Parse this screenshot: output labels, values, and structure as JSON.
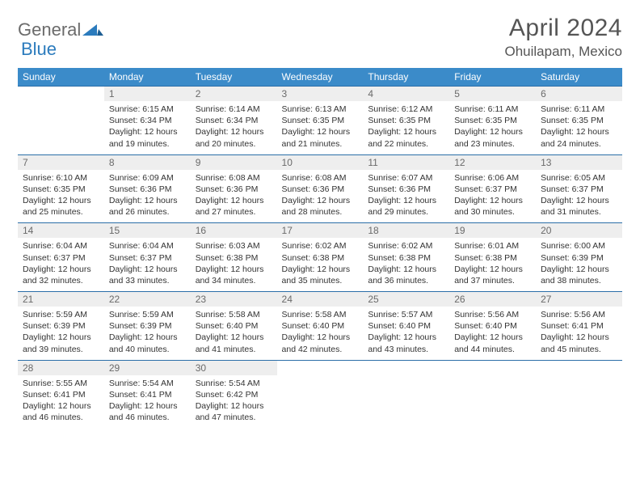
{
  "brand": {
    "word1": "General",
    "word2": "Blue"
  },
  "title": "April 2024",
  "location": "Ohuilapam, Mexico",
  "colors": {
    "header_bg": "#3b8bc9",
    "header_text": "#ffffff",
    "rule": "#2b6ea8",
    "daynum_bg": "#eeeeee",
    "text": "#333333",
    "brand_gray": "#6b6b6b",
    "brand_blue": "#2b7bbd"
  },
  "typography": {
    "title_fontsize": 30,
    "location_fontsize": 17,
    "dayhead_fontsize": 12,
    "daynum_fontsize": 12,
    "cell_fontsize": 10.5
  },
  "day_headers": [
    "Sunday",
    "Monday",
    "Tuesday",
    "Wednesday",
    "Thursday",
    "Friday",
    "Saturday"
  ],
  "weeks": [
    {
      "nums": [
        "",
        "1",
        "2",
        "3",
        "4",
        "5",
        "6"
      ],
      "cells": [
        null,
        {
          "sunrise": "6:15 AM",
          "sunset": "6:34 PM",
          "daylight": "12 hours and 19 minutes."
        },
        {
          "sunrise": "6:14 AM",
          "sunset": "6:34 PM",
          "daylight": "12 hours and 20 minutes."
        },
        {
          "sunrise": "6:13 AM",
          "sunset": "6:35 PM",
          "daylight": "12 hours and 21 minutes."
        },
        {
          "sunrise": "6:12 AM",
          "sunset": "6:35 PM",
          "daylight": "12 hours and 22 minutes."
        },
        {
          "sunrise": "6:11 AM",
          "sunset": "6:35 PM",
          "daylight": "12 hours and 23 minutes."
        },
        {
          "sunrise": "6:11 AM",
          "sunset": "6:35 PM",
          "daylight": "12 hours and 24 minutes."
        }
      ]
    },
    {
      "nums": [
        "7",
        "8",
        "9",
        "10",
        "11",
        "12",
        "13"
      ],
      "cells": [
        {
          "sunrise": "6:10 AM",
          "sunset": "6:35 PM",
          "daylight": "12 hours and 25 minutes."
        },
        {
          "sunrise": "6:09 AM",
          "sunset": "6:36 PM",
          "daylight": "12 hours and 26 minutes."
        },
        {
          "sunrise": "6:08 AM",
          "sunset": "6:36 PM",
          "daylight": "12 hours and 27 minutes."
        },
        {
          "sunrise": "6:08 AM",
          "sunset": "6:36 PM",
          "daylight": "12 hours and 28 minutes."
        },
        {
          "sunrise": "6:07 AM",
          "sunset": "6:36 PM",
          "daylight": "12 hours and 29 minutes."
        },
        {
          "sunrise": "6:06 AM",
          "sunset": "6:37 PM",
          "daylight": "12 hours and 30 minutes."
        },
        {
          "sunrise": "6:05 AM",
          "sunset": "6:37 PM",
          "daylight": "12 hours and 31 minutes."
        }
      ]
    },
    {
      "nums": [
        "14",
        "15",
        "16",
        "17",
        "18",
        "19",
        "20"
      ],
      "cells": [
        {
          "sunrise": "6:04 AM",
          "sunset": "6:37 PM",
          "daylight": "12 hours and 32 minutes."
        },
        {
          "sunrise": "6:04 AM",
          "sunset": "6:37 PM",
          "daylight": "12 hours and 33 minutes."
        },
        {
          "sunrise": "6:03 AM",
          "sunset": "6:38 PM",
          "daylight": "12 hours and 34 minutes."
        },
        {
          "sunrise": "6:02 AM",
          "sunset": "6:38 PM",
          "daylight": "12 hours and 35 minutes."
        },
        {
          "sunrise": "6:02 AM",
          "sunset": "6:38 PM",
          "daylight": "12 hours and 36 minutes."
        },
        {
          "sunrise": "6:01 AM",
          "sunset": "6:38 PM",
          "daylight": "12 hours and 37 minutes."
        },
        {
          "sunrise": "6:00 AM",
          "sunset": "6:39 PM",
          "daylight": "12 hours and 38 minutes."
        }
      ]
    },
    {
      "nums": [
        "21",
        "22",
        "23",
        "24",
        "25",
        "26",
        "27"
      ],
      "cells": [
        {
          "sunrise": "5:59 AM",
          "sunset": "6:39 PM",
          "daylight": "12 hours and 39 minutes."
        },
        {
          "sunrise": "5:59 AM",
          "sunset": "6:39 PM",
          "daylight": "12 hours and 40 minutes."
        },
        {
          "sunrise": "5:58 AM",
          "sunset": "6:40 PM",
          "daylight": "12 hours and 41 minutes."
        },
        {
          "sunrise": "5:58 AM",
          "sunset": "6:40 PM",
          "daylight": "12 hours and 42 minutes."
        },
        {
          "sunrise": "5:57 AM",
          "sunset": "6:40 PM",
          "daylight": "12 hours and 43 minutes."
        },
        {
          "sunrise": "5:56 AM",
          "sunset": "6:40 PM",
          "daylight": "12 hours and 44 minutes."
        },
        {
          "sunrise": "5:56 AM",
          "sunset": "6:41 PM",
          "daylight": "12 hours and 45 minutes."
        }
      ]
    },
    {
      "nums": [
        "28",
        "29",
        "30",
        "",
        "",
        "",
        ""
      ],
      "cells": [
        {
          "sunrise": "5:55 AM",
          "sunset": "6:41 PM",
          "daylight": "12 hours and 46 minutes."
        },
        {
          "sunrise": "5:54 AM",
          "sunset": "6:41 PM",
          "daylight": "12 hours and 46 minutes."
        },
        {
          "sunrise": "5:54 AM",
          "sunset": "6:42 PM",
          "daylight": "12 hours and 47 minutes."
        },
        null,
        null,
        null,
        null
      ]
    }
  ],
  "labels": {
    "sunrise": "Sunrise: ",
    "sunset": "Sunset: ",
    "daylight": "Daylight: "
  }
}
